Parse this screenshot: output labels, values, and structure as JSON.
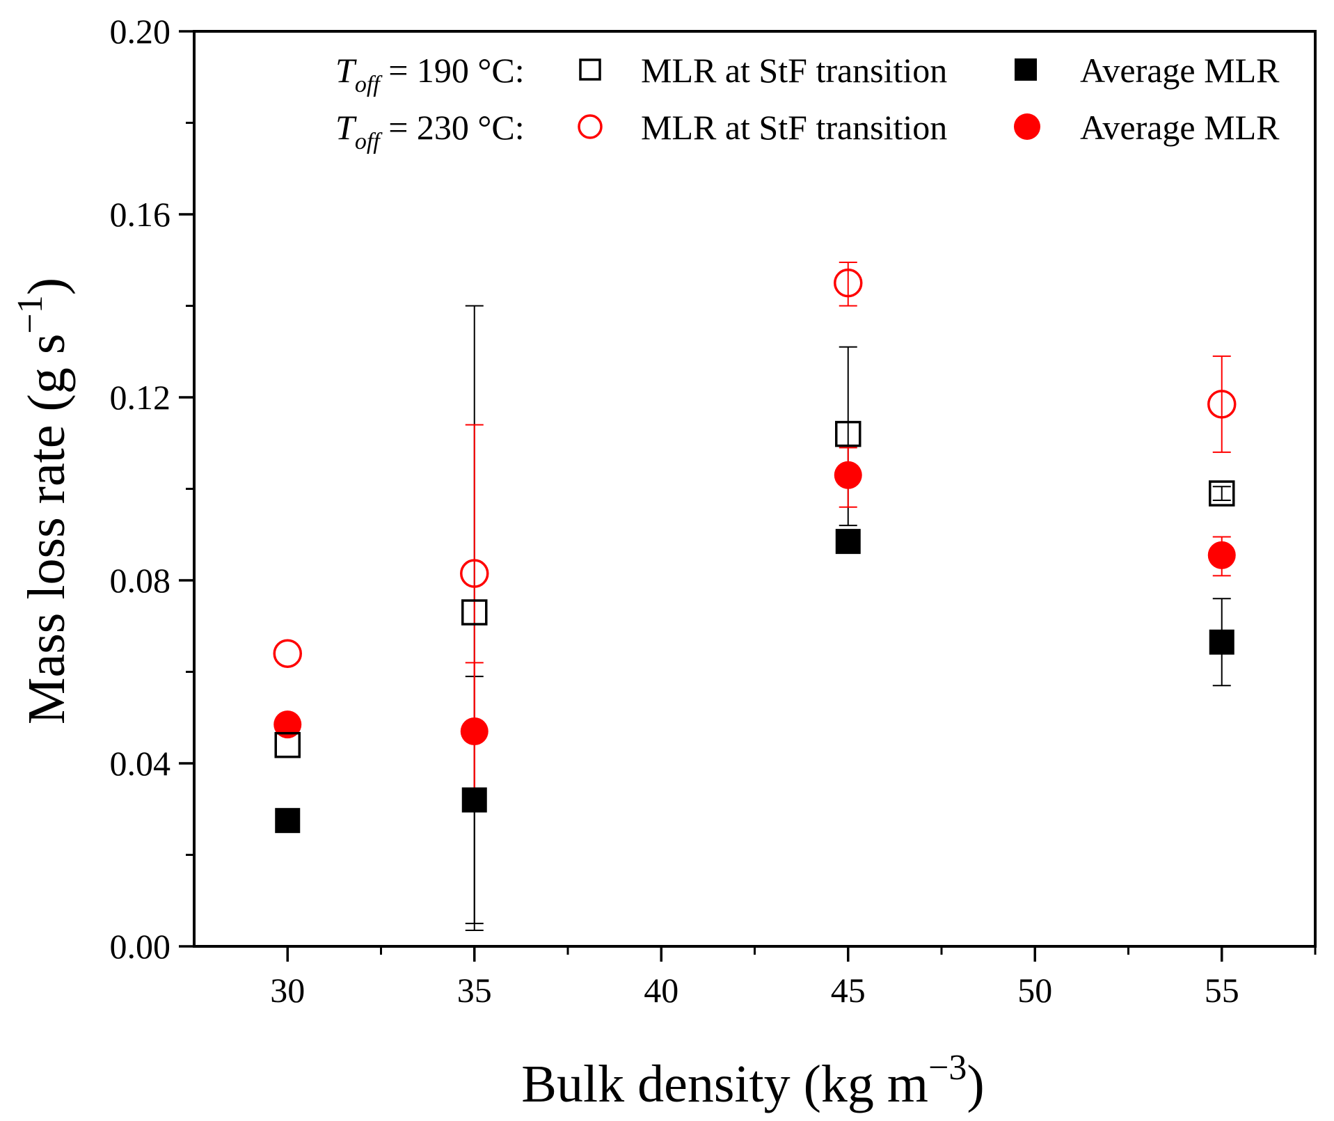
{
  "chart_data": {
    "type": "scatter",
    "title": "",
    "xlabel": {
      "main": "Bulk density (kg m",
      "sup": "−3",
      "close": ")"
    },
    "ylabel": {
      "main": "Mass loss rate (g s",
      "sup": "−1",
      "close": ")"
    },
    "xlim": [
      27.5,
      57.5
    ],
    "ylim": [
      0,
      0.2
    ],
    "x_ticks": [
      30,
      35,
      40,
      45,
      50,
      55
    ],
    "x_tick_labels": [
      "30",
      "35",
      "40",
      "45",
      "50",
      "55"
    ],
    "x_minor_ticks": [
      32.5,
      37.5,
      42.5,
      47.5,
      52.5,
      57.5
    ],
    "y_ticks": [
      0,
      0.04,
      0.08,
      0.12,
      0.16,
      0.2
    ],
    "y_tick_labels": [
      "0.00",
      "0.04",
      "0.08",
      "0.12",
      "0.16",
      "0.20"
    ],
    "y_minor_ticks": [
      0.02,
      0.06,
      0.1,
      0.14,
      0.18
    ],
    "grid": false,
    "legend_position": "top-right",
    "legend_rows": [
      {
        "t_symbol": "T",
        "t_sub": "off",
        "condition": " = 190 °C:",
        "series_refs": [
          "t190_stf",
          "t190_avg"
        ]
      },
      {
        "t_symbol": "T",
        "t_sub": "off",
        "condition": " = 230 °C:",
        "series_refs": [
          "t230_stf",
          "t230_avg"
        ]
      }
    ],
    "series": [
      {
        "id": "t190_stf",
        "name": "MLR at StF transition",
        "condition": "T_off = 190 °C",
        "marker": "square-open",
        "color": "#000000",
        "points": [
          {
            "x": 30,
            "y": 0.044,
            "err": null
          },
          {
            "x": 35,
            "y": 0.073,
            "err": [
              0.005,
              0.14
            ]
          },
          {
            "x": 45,
            "y": 0.112,
            "err": [
              0.092,
              0.131
            ]
          },
          {
            "x": 55,
            "y": 0.099,
            "err": [
              0.0975,
              0.1005
            ]
          }
        ]
      },
      {
        "id": "t190_avg",
        "name": "Average MLR",
        "condition": "T_off = 190 °C",
        "marker": "square-filled",
        "color": "#000000",
        "points": [
          {
            "x": 30,
            "y": 0.0275,
            "err": null
          },
          {
            "x": 35,
            "y": 0.032,
            "err": [
              0.0035,
              0.059
            ]
          },
          {
            "x": 45,
            "y": 0.0885,
            "err": null
          },
          {
            "x": 55,
            "y": 0.0665,
            "err": [
              0.057,
              0.076
            ]
          }
        ]
      },
      {
        "id": "t230_stf",
        "name": "MLR at StF transition",
        "condition": "T_off = 230 °C",
        "marker": "circle-open",
        "color": "#ff0000",
        "points": [
          {
            "x": 30,
            "y": 0.064,
            "err": null
          },
          {
            "x": 35,
            "y": 0.0815,
            "err": [
              0.0335,
              0.114
            ]
          },
          {
            "x": 45,
            "y": 0.145,
            "err": [
              0.14,
              0.1495
            ]
          },
          {
            "x": 55,
            "y": 0.1185,
            "err": [
              0.108,
              0.129
            ]
          }
        ]
      },
      {
        "id": "t230_avg",
        "name": "Average MLR",
        "condition": "T_off = 230 °C",
        "marker": "circle-filled",
        "color": "#ff0000",
        "points": [
          {
            "x": 30,
            "y": 0.0485,
            "err": null
          },
          {
            "x": 35,
            "y": 0.047,
            "err": [
              0.0325,
              0.062
            ]
          },
          {
            "x": 45,
            "y": 0.103,
            "err": [
              0.096,
              0.109
            ]
          },
          {
            "x": 55,
            "y": 0.0855,
            "err": [
              0.081,
              0.0895
            ]
          }
        ]
      }
    ]
  }
}
